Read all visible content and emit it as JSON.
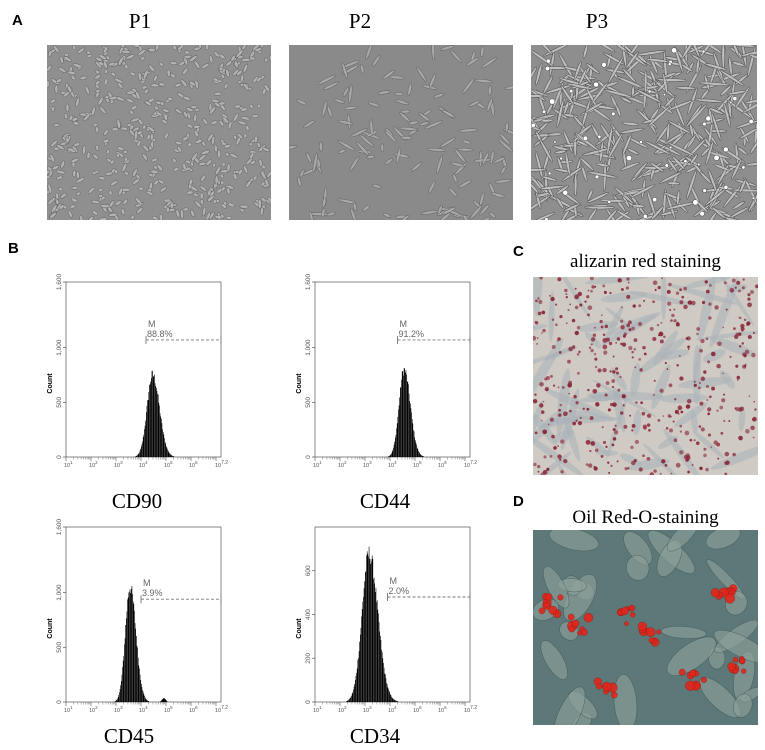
{
  "panels": {
    "a": {
      "letter": "A",
      "images": [
        {
          "label": "P1"
        },
        {
          "label": "P2"
        },
        {
          "label": "P3"
        }
      ]
    },
    "b": {
      "letter": "B"
    },
    "c": {
      "letter": "C",
      "title": "alizarin red staining"
    },
    "d": {
      "letter": "D",
      "title": "Oil Red-O-staining"
    }
  },
  "colors": {
    "histogram_fill": "#000000",
    "gate_line": "#777777",
    "alizarin_stain": "#8a2a3a",
    "oil_red": "#e0261c"
  },
  "chart_data": [
    {
      "type": "histogram",
      "marker": "CD90",
      "ylabel": "Count",
      "yticks": [
        "0",
        "500",
        "1,000",
        "1,600"
      ],
      "ylim": [
        0,
        1600
      ],
      "xscale": "log",
      "xlim": [
        1,
        7.2
      ],
      "xticks": [
        "10^1",
        "10^2",
        "10^3",
        "10^4",
        "10^5",
        "10^6",
        "10^7.2"
      ],
      "peak_log": 4.45,
      "peak_count": 800,
      "sigma": 0.22,
      "gate": {
        "label": "M",
        "percent": "88.8%",
        "start_log": 4.2,
        "end_log": 7.2,
        "y": 1070
      }
    },
    {
      "type": "histogram",
      "marker": "CD44",
      "ylabel": "Count",
      "yticks": [
        "0",
        "500",
        "1,000",
        "1,600"
      ],
      "ylim": [
        0,
        1600
      ],
      "xscale": "log",
      "xlim": [
        1,
        7.2
      ],
      "xticks": [
        "10^1",
        "10^2",
        "10^3",
        "10^4",
        "10^5",
        "10^6",
        "10^7.2"
      ],
      "peak_log": 4.55,
      "peak_count": 850,
      "sigma": 0.2,
      "gate": {
        "label": "M",
        "percent": "91.2%",
        "start_log": 4.3,
        "end_log": 7.2,
        "y": 1070
      }
    },
    {
      "type": "histogram",
      "marker": "CD45",
      "ylabel": "Count",
      "yticks": [
        "0",
        "500",
        "1,000",
        "1,600"
      ],
      "ylim": [
        0,
        1600
      ],
      "xscale": "log",
      "xlim": [
        1,
        7.2
      ],
      "xticks": [
        "10^1",
        "10^2",
        "10^3",
        "10^4",
        "10^5",
        "10^6",
        "10^7.2"
      ],
      "peak_log": 3.55,
      "peak_count": 1120,
      "sigma": 0.19,
      "gate": {
        "label": "M",
        "percent": "3.9%",
        "start_log": 4.0,
        "end_log": 7.2,
        "y": 940
      }
    },
    {
      "type": "histogram",
      "marker": "CD34",
      "ylabel": "Count",
      "yticks": [
        "0",
        "200",
        "400",
        "600"
      ],
      "ylim": [
        0,
        800
      ],
      "xscale": "log",
      "xlim": [
        1,
        7.2
      ],
      "xticks": [
        "10^1",
        "10^2",
        "10^3",
        "10^4",
        "10^5",
        "10^6",
        "10^7.2"
      ],
      "peak_log": 3.15,
      "peak_count": 720,
      "sigma": 0.28,
      "gate": {
        "label": "M",
        "percent": "2.0%",
        "start_log": 3.9,
        "end_log": 7.2,
        "y": 480
      }
    }
  ]
}
